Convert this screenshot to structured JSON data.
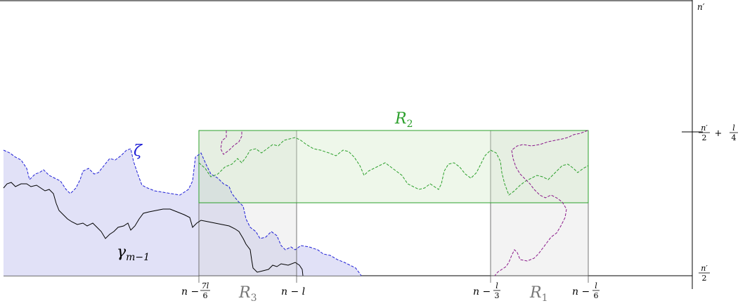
{
  "labels": {
    "R1": "R",
    "R1_sub": "1",
    "R2": "R",
    "R2_sub": "2",
    "R3": "R",
    "R3_sub": "3",
    "zeta": "ζ",
    "gamma": "γ",
    "gamma_sub": "m−1"
  },
  "x_ticks": {
    "t1_prefix": "n −",
    "t1_num": "7l",
    "t1_den": "6",
    "t2": "n − l",
    "t3_prefix": "n −",
    "t3_num": "l",
    "t3_den": "3",
    "t4_prefix": "n −",
    "t4_num": "l",
    "t4_den": "6"
  },
  "y_ticks": {
    "top": "n′",
    "mid_num": "n′",
    "mid_den": "2",
    "mid_plus": "+",
    "mid_num2": "l",
    "mid_den2": "4",
    "bot_num": "n′",
    "bot_den": "2"
  },
  "colors": {
    "green": "#2ca02c",
    "blue": "#1f1fd6",
    "purple": "#8b1a8b",
    "black": "#000000",
    "lavender_fill": "#dcdcf6",
    "green_fill": "#eef7ea",
    "gray_fill": "#f0f0f0"
  }
}
